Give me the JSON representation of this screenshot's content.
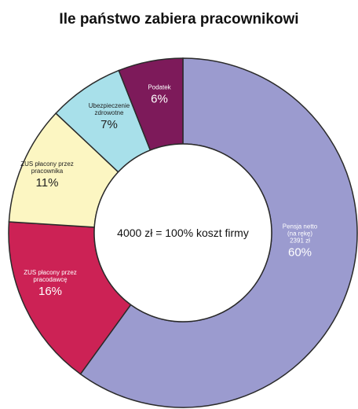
{
  "chart_data": {
    "type": "pie",
    "title": "Ile państwo zabiera pracownikowi",
    "center_label": "4000 zł = 100% koszt firmy",
    "slices": [
      {
        "label": [
          "Pensja netto",
          "(na rękę)",
          "2391 zł"
        ],
        "pct_label": "60%",
        "value": 60,
        "color": "#9b9bcf",
        "text_color": "#ffffff"
      },
      {
        "label": [
          "ZUS płacony przez",
          "pracodawcę"
        ],
        "pct_label": "16%",
        "value": 16,
        "color": "#cc2255",
        "text_color": "#ffffff"
      },
      {
        "label": [
          "ZUS płacony przez",
          "pracownika"
        ],
        "pct_label": "11%",
        "value": 11,
        "color": "#fcf6c2",
        "text_color": "#222222"
      },
      {
        "label": [
          "Ubezpieczenie",
          "zdrowotne"
        ],
        "pct_label": "7%",
        "value": 7,
        "color": "#a8e0ea",
        "text_color": "#222222"
      },
      {
        "label": [
          "Podatek"
        ],
        "pct_label": "6%",
        "value": 6,
        "color": "#7d1a5a",
        "text_color": "#ffffff"
      }
    ]
  }
}
